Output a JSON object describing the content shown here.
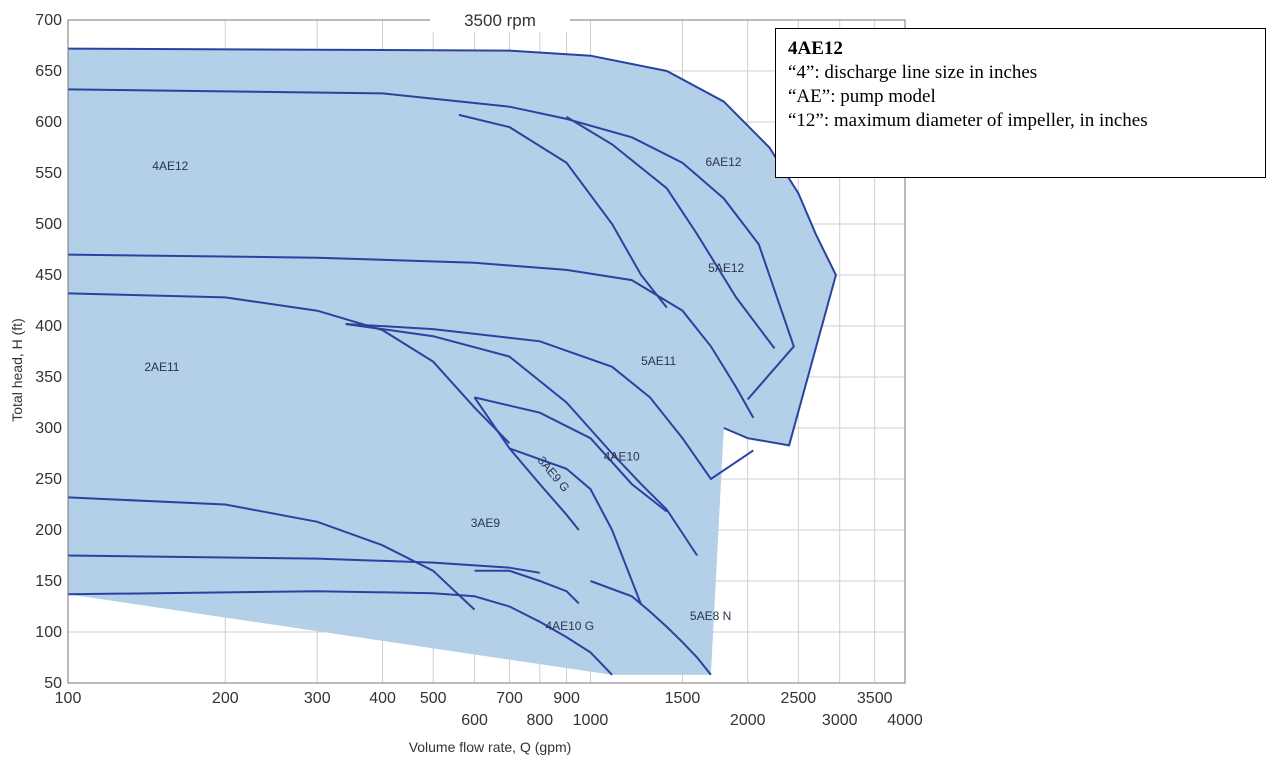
{
  "chart_data": {
    "type": "area",
    "title": "3500 rpm",
    "xlabel": "Volume flow rate, Q (gpm)",
    "ylabel": "Total head, H (ft)",
    "x_scale": "log",
    "xlim": [
      100,
      4000
    ],
    "ylim": [
      50,
      700
    ],
    "grid": true,
    "x_tick_labels_row1": [
      "100",
      "200",
      "300",
      "400",
      "500",
      "700",
      "900",
      "1500",
      "2500",
      "3500"
    ],
    "x_tick_values_row1": [
      100,
      200,
      300,
      400,
      500,
      700,
      900,
      1500,
      2500,
      3500
    ],
    "x_tick_labels_row2": [
      "600",
      "800",
      "1000",
      "2000",
      "3000",
      "4000"
    ],
    "x_tick_values_row2": [
      600,
      800,
      1000,
      2000,
      3000,
      4000
    ],
    "y_ticks": [
      50,
      100,
      150,
      200,
      250,
      300,
      350,
      400,
      450,
      500,
      550,
      600,
      650,
      700
    ],
    "fill_color": "#b4cfe8",
    "line_color": "#2a43a0",
    "regions": [
      {
        "name": "4AE12",
        "label_x": 145,
        "label_y": 553,
        "rotate": 0,
        "polygon": [
          [
            100,
            672
          ],
          [
            700,
            670
          ],
          [
            1000,
            665
          ],
          [
            1400,
            650
          ],
          [
            1800,
            620
          ],
          [
            2200,
            575
          ],
          [
            2500,
            530
          ],
          [
            2700,
            490
          ],
          [
            2950,
            450
          ],
          [
            2400,
            283
          ],
          [
            2000,
            290
          ],
          [
            1800,
            300
          ]
        ]
      },
      {
        "name": "6AE12",
        "label_x": 1660,
        "label_y": 557,
        "rotate": 0,
        "polygon": []
      },
      {
        "name": "5AE12",
        "label_x": 1680,
        "label_y": 453,
        "rotate": 0,
        "polygon": []
      },
      {
        "name": "2AE11",
        "label_x": 140,
        "label_y": 356,
        "rotate": 0,
        "polygon": []
      },
      {
        "name": "5AE11",
        "label_x": 1250,
        "label_y": 362,
        "rotate": 0,
        "polygon": []
      },
      {
        "name": "4AE10",
        "label_x": 1060,
        "label_y": 268,
        "rotate": 0,
        "polygon": []
      },
      {
        "name": "3AE9 G",
        "label_x": 790,
        "label_y": 268,
        "rotate": 50,
        "polygon": []
      },
      {
        "name": "3AE9",
        "label_x": 590,
        "label_y": 203,
        "rotate": 0,
        "polygon": []
      },
      {
        "name": "4AE10 G",
        "label_x": 820,
        "label_y": 102,
        "rotate": 0,
        "polygon": []
      },
      {
        "name": "5AE8 N",
        "label_x": 1550,
        "label_y": 112,
        "rotate": 0,
        "polygon": []
      }
    ],
    "curves": [
      {
        "name": "4AE12-outer",
        "points": [
          [
            100,
            672
          ],
          [
            700,
            670
          ],
          [
            1000,
            665
          ],
          [
            1400,
            650
          ],
          [
            1800,
            620
          ],
          [
            2200,
            575
          ],
          [
            2500,
            530
          ],
          [
            2700,
            490
          ],
          [
            2950,
            450
          ],
          [
            2400,
            283
          ],
          [
            2000,
            290
          ],
          [
            1800,
            300
          ]
        ]
      },
      {
        "name": "6AE12-upper",
        "points": [
          [
            100,
            632
          ],
          [
            400,
            628
          ],
          [
            700,
            615
          ],
          [
            900,
            603
          ],
          [
            1200,
            585
          ],
          [
            1500,
            560
          ],
          [
            1800,
            525
          ],
          [
            2100,
            480
          ],
          [
            2450,
            380
          ],
          [
            2000,
            328
          ]
        ]
      },
      {
        "name": "4AE12-lower",
        "points": [
          [
            560,
            607
          ],
          [
            700,
            595
          ],
          [
            900,
            560
          ],
          [
            1100,
            500
          ],
          [
            1250,
            450
          ],
          [
            1400,
            418
          ]
        ]
      },
      {
        "name": "5AE12-lower",
        "points": [
          [
            900,
            605
          ],
          [
            1100,
            578
          ],
          [
            1400,
            535
          ],
          [
            1600,
            490
          ],
          [
            1900,
            428
          ],
          [
            2250,
            378
          ]
        ]
      },
      {
        "name": "5AE11-upper",
        "points": [
          [
            100,
            470
          ],
          [
            300,
            467
          ],
          [
            600,
            462
          ],
          [
            900,
            455
          ],
          [
            1200,
            445
          ],
          [
            1500,
            415
          ],
          [
            1700,
            380
          ],
          [
            1900,
            340
          ],
          [
            2050,
            310
          ]
        ]
      },
      {
        "name": "2AE11-upper",
        "points": [
          [
            100,
            432
          ],
          [
            200,
            428
          ],
          [
            300,
            415
          ],
          [
            400,
            396
          ],
          [
            500,
            365
          ],
          [
            600,
            320
          ],
          [
            700,
            285
          ]
        ]
      },
      {
        "name": "4AE10-upper",
        "points": [
          [
            340,
            402
          ],
          [
            500,
            397
          ],
          [
            800,
            385
          ],
          [
            1100,
            360
          ],
          [
            1300,
            330
          ],
          [
            1500,
            290
          ],
          [
            1700,
            250
          ],
          [
            2050,
            278
          ]
        ]
      },
      {
        "name": "5AE11-to-5AE8",
        "points": [
          [
            340,
            402
          ],
          [
            500,
            390
          ],
          [
            700,
            370
          ],
          [
            900,
            325
          ],
          [
            1100,
            275
          ],
          [
            1250,
            245
          ],
          [
            1400,
            220
          ],
          [
            1600,
            175
          ]
        ]
      },
      {
        "name": "3AE9G-upper",
        "points": [
          [
            600,
            330
          ],
          [
            800,
            315
          ],
          [
            1000,
            290
          ],
          [
            1200,
            245
          ],
          [
            1400,
            218
          ]
        ]
      },
      {
        "name": "3AE9-left",
        "points": [
          [
            600,
            330
          ],
          [
            700,
            280
          ],
          [
            800,
            245
          ],
          [
            900,
            215
          ],
          [
            950,
            200
          ]
        ]
      },
      {
        "name": "3AE9-right",
        "points": [
          [
            700,
            280
          ],
          [
            900,
            260
          ],
          [
            1000,
            240
          ],
          [
            1100,
            200
          ],
          [
            1250,
            127
          ]
        ]
      },
      {
        "name": "2AE11-lower",
        "points": [
          [
            100,
            232
          ],
          [
            200,
            225
          ],
          [
            300,
            208
          ],
          [
            400,
            185
          ],
          [
            500,
            160
          ],
          [
            550,
            140
          ],
          [
            600,
            122
          ]
        ]
      },
      {
        "name": "2AE11-mid",
        "points": [
          [
            100,
            175
          ],
          [
            300,
            172
          ],
          [
            500,
            168
          ],
          [
            700,
            163
          ],
          [
            800,
            158
          ]
        ]
      },
      {
        "name": "4AE10G-upper",
        "points": [
          [
            600,
            160
          ],
          [
            700,
            160
          ],
          [
            800,
            150
          ],
          [
            900,
            140
          ],
          [
            950,
            128
          ]
        ]
      },
      {
        "name": "4AE10G-lower",
        "points": [
          [
            100,
            137
          ],
          [
            300,
            140
          ],
          [
            500,
            138
          ],
          [
            600,
            135
          ],
          [
            700,
            125
          ],
          [
            800,
            110
          ],
          [
            900,
            95
          ],
          [
            1000,
            80
          ],
          [
            1100,
            58
          ]
        ]
      },
      {
        "name": "5AE8N-lower",
        "points": [
          [
            1000,
            150
          ],
          [
            1200,
            135
          ],
          [
            1300,
            120
          ],
          [
            1400,
            105
          ],
          [
            1500,
            90
          ],
          [
            1600,
            75
          ],
          [
            1700,
            58
          ]
        ]
      }
    ]
  },
  "legend": {
    "title": "4AE12",
    "line1": "“4”:  discharge line size in inches",
    "line2": "“AE”:  pump model",
    "line3": "“12”:  maximum diameter of impeller, in inches"
  }
}
